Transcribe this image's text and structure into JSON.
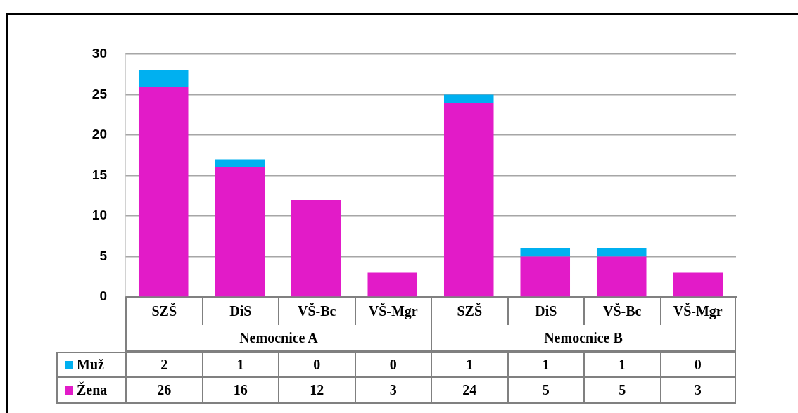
{
  "chart_data": {
    "type": "bar",
    "categories": [
      "SZŠ",
      "DiS",
      "VŠ-Bc",
      "VŠ-Mgr",
      "SZŠ",
      "DiS",
      "VŠ-Bc",
      "VŠ-Mgr"
    ],
    "series": [
      {
        "name": "Žena",
        "color": "#e21bc8",
        "values": [
          26,
          16,
          12,
          3,
          24,
          5,
          5,
          3
        ]
      },
      {
        "name": "Muž",
        "color": "#00b0f0",
        "values": [
          2,
          1,
          0,
          0,
          1,
          1,
          1,
          0
        ]
      }
    ],
    "stacked": true,
    "ylim": [
      0,
      30
    ],
    "yticks": [
      0,
      5,
      10,
      15,
      20,
      25,
      30
    ],
    "grid": "y",
    "legend": "bottom left",
    "data_labels": true,
    "annotations": [
      "Nemocnice A",
      "Nemocnice B"
    ]
  }
}
